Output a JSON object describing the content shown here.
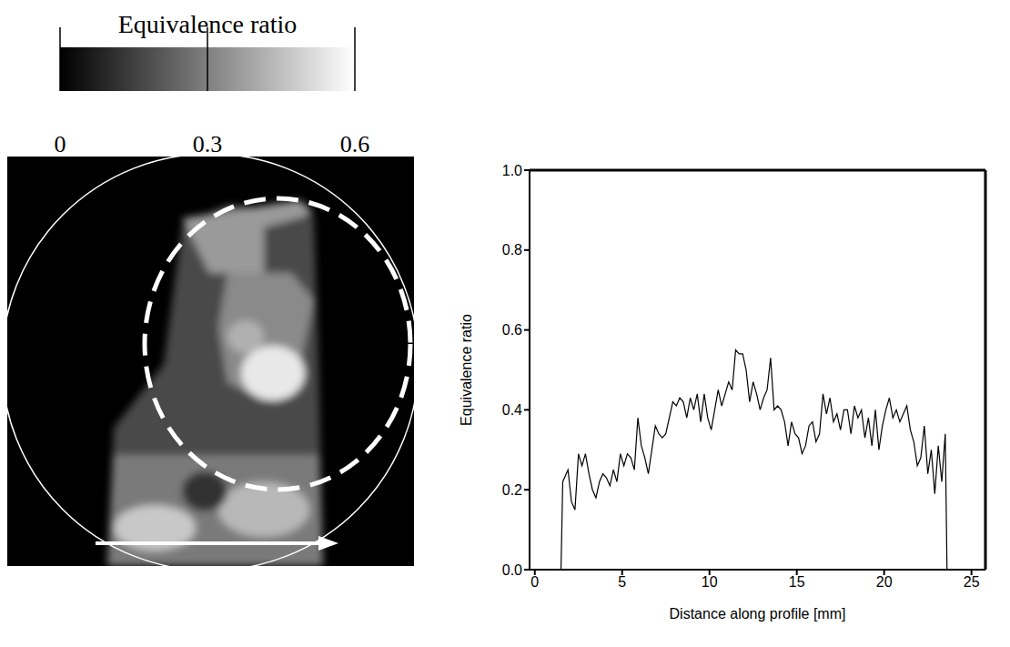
{
  "chart_data": [
    {
      "type": "image",
      "colorbar": {
        "label": "Equivalence ratio",
        "range": [
          0,
          0.6
        ],
        "ticks": [
          0,
          0.3,
          0.6
        ]
      }
    },
    {
      "type": "line",
      "xlabel": "Distance along profile [mm]",
      "ylabel": "Equivalence ratio",
      "color": "#000000",
      "x": [
        0,
        0.5,
        1.0,
        1.5,
        1.6,
        1.9,
        2.1,
        2.3,
        2.5,
        2.7,
        2.9,
        3.1,
        3.3,
        3.5,
        3.7,
        3.9,
        4.1,
        4.3,
        4.5,
        4.7,
        4.9,
        5.1,
        5.3,
        5.5,
        5.7,
        5.9,
        6.1,
        6.3,
        6.5,
        6.7,
        6.9,
        7.1,
        7.3,
        7.5,
        7.7,
        7.9,
        8.1,
        8.3,
        8.5,
        8.7,
        8.9,
        9.1,
        9.3,
        9.5,
        9.7,
        9.9,
        10.1,
        10.3,
        10.5,
        10.7,
        10.9,
        11.1,
        11.3,
        11.5,
        11.7,
        11.9,
        12.1,
        12.3,
        12.5,
        12.7,
        12.9,
        13.1,
        13.3,
        13.5,
        13.7,
        13.9,
        14.1,
        14.3,
        14.5,
        14.7,
        14.9,
        15.1,
        15.3,
        15.5,
        15.7,
        15.9,
        16.1,
        16.3,
        16.5,
        16.7,
        16.9,
        17.1,
        17.3,
        17.5,
        17.7,
        17.9,
        18.1,
        18.3,
        18.5,
        18.7,
        18.9,
        19.1,
        19.3,
        19.5,
        19.7,
        19.9,
        20.1,
        20.3,
        20.5,
        20.7,
        20.9,
        21.1,
        21.3,
        21.5,
        21.7,
        21.9,
        22.1,
        22.3,
        22.5,
        22.7,
        22.9,
        23.1,
        23.3,
        23.5,
        23.6,
        24.0
      ],
      "values": [
        0,
        0,
        0,
        0,
        0.22,
        0.25,
        0.17,
        0.15,
        0.29,
        0.26,
        0.29,
        0.24,
        0.2,
        0.18,
        0.22,
        0.24,
        0.23,
        0.21,
        0.25,
        0.22,
        0.29,
        0.26,
        0.29,
        0.28,
        0.25,
        0.38,
        0.31,
        0.28,
        0.24,
        0.3,
        0.36,
        0.34,
        0.33,
        0.34,
        0.38,
        0.42,
        0.41,
        0.43,
        0.42,
        0.38,
        0.43,
        0.4,
        0.44,
        0.37,
        0.44,
        0.38,
        0.35,
        0.4,
        0.45,
        0.41,
        0.44,
        0.47,
        0.45,
        0.55,
        0.54,
        0.54,
        0.5,
        0.42,
        0.47,
        0.44,
        0.4,
        0.43,
        0.45,
        0.53,
        0.4,
        0.41,
        0.4,
        0.37,
        0.31,
        0.37,
        0.34,
        0.33,
        0.29,
        0.31,
        0.36,
        0.37,
        0.32,
        0.34,
        0.44,
        0.39,
        0.43,
        0.37,
        0.39,
        0.35,
        0.4,
        0.4,
        0.34,
        0.41,
        0.38,
        0.4,
        0.33,
        0.38,
        0.31,
        0.4,
        0.3,
        0.36,
        0.4,
        0.43,
        0.38,
        0.4,
        0.37,
        0.39,
        0.41,
        0.35,
        0.32,
        0.26,
        0.28,
        0.36,
        0.24,
        0.3,
        0.19,
        0.31,
        0.22,
        0.34,
        0,
        0
      ],
      "xlim": [
        -0.3,
        25.8
      ],
      "xticks": [
        0,
        5,
        10,
        15,
        20,
        25
      ],
      "ylim": [
        0,
        1
      ],
      "yticks": [
        {
          "value": 0,
          "label": "0.0"
        },
        {
          "value": 0.2,
          "label": "0.2"
        },
        {
          "value": 0.4,
          "label": "0.4"
        },
        {
          "value": 0.6,
          "label": "0.6"
        },
        {
          "value": 0.8,
          "label": "0.8"
        },
        {
          "value": 1,
          "label": "1.0"
        }
      ]
    }
  ]
}
